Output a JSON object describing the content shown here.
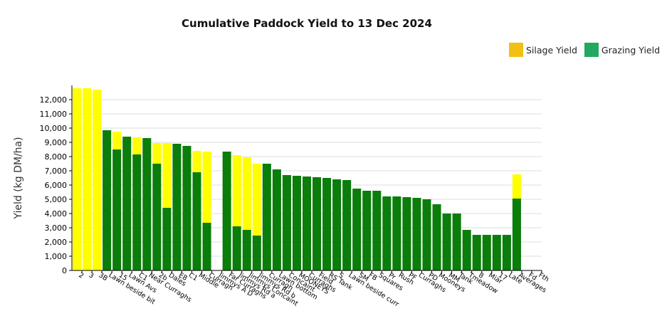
{
  "chart_data": {
    "type": "bar",
    "stacked": true,
    "title": "Cumulative Paddock Yield to 13 Dec 2024",
    "ylabel": "Yield (kg DM/ha)",
    "xlabel": "",
    "ylim": [
      0,
      13000
    ],
    "yticks": [
      0,
      1000,
      2000,
      3000,
      4000,
      5000,
      6000,
      7000,
      8000,
      9000,
      10000,
      11000,
      12000
    ],
    "ytick_labels": [
      "0",
      "1,000",
      "2,000",
      "3,000",
      "4,000",
      "5,000",
      "6,000",
      "7,000",
      "8,000",
      "9,000",
      "10,000",
      "11,000",
      "12,000"
    ],
    "grid": true,
    "legend_position": "top-right",
    "colors": {
      "silage": "#ffff00",
      "grazing": "#0a7d0a",
      "legend_silage": "#f2c012",
      "legend_grazing": "#23a860"
    },
    "legend": [
      {
        "label": "Silage Yield",
        "series": "silage"
      },
      {
        "label": "Grazing Yield",
        "series": "grazing"
      }
    ],
    "categories": [
      "2",
      "3",
      "3B",
      "Lawn beside bit",
      "15",
      "Lawn Avs",
      "C1",
      "Near Curraghs",
      "2b",
      "Dales",
      "E8",
      "C1",
      "Middle",
      "Curragh",
      "Jimmys A D",
      "Far Curraghs",
      "Jimmys Rd a",
      "Jimmys Concaint",
      "Jimmys Rd b",
      "Curragh",
      "Lawn bottom",
      "Concaint",
      "MOONEYS",
      "Curraghs",
      "Field",
      "RS Tank",
      "S",
      "Lawn beside curr",
      "SM",
      "FB",
      "Squares",
      "Pr",
      "Rush",
      "PF",
      "Curraghs",
      "PD",
      "Mooneys",
      "MM",
      "Tank",
      "Tmeadow",
      "8",
      "Miar",
      "17",
      "Late",
      "Averages",
      "Fd",
      "Fth"
    ],
    "show_label": [
      true,
      true,
      true,
      true,
      true,
      true,
      true,
      true,
      true,
      true,
      true,
      true,
      true,
      true,
      true,
      true,
      true,
      true,
      true,
      true,
      true,
      true,
      true,
      true,
      true,
      true,
      true,
      true,
      true,
      true,
      true,
      true,
      true,
      true,
      true,
      true,
      true,
      true,
      true,
      true,
      true,
      true,
      true,
      true,
      true,
      true,
      true
    ],
    "series": [
      {
        "key": "grazing",
        "values": [
          0,
          0,
          0,
          9850,
          8500,
          9400,
          8150,
          9300,
          7500,
          4400,
          8900,
          8750,
          6900,
          3350,
          0,
          8350,
          3100,
          2850,
          2450,
          7500,
          7100,
          6700,
          6650,
          6600,
          6550,
          6500,
          6400,
          6350,
          5750,
          5600,
          5600,
          5200,
          5200,
          5150,
          5100,
          5000,
          4650,
          4000,
          4000,
          2850,
          2500,
          2500,
          2500,
          2500,
          5050,
          0,
          0
        ]
      },
      {
        "key": "silage",
        "values": [
          12800,
          12800,
          12700,
          0,
          1250,
          0,
          1200,
          0,
          1450,
          4550,
          0,
          0,
          1500,
          5000,
          0,
          0,
          5000,
          5100,
          5050,
          0,
          0,
          0,
          0,
          0,
          0,
          0,
          0,
          0,
          0,
          0,
          0,
          0,
          0,
          0,
          0,
          0,
          0,
          0,
          0,
          0,
          0,
          0,
          0,
          0,
          1700,
          0,
          0
        ]
      }
    ]
  }
}
